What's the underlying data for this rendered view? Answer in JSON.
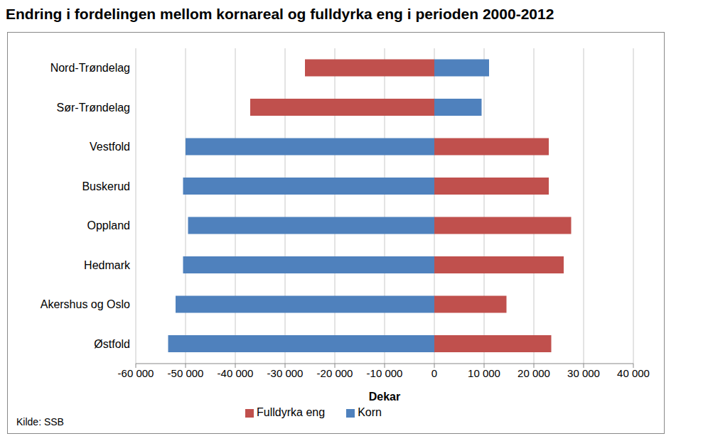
{
  "chart_data": {
    "type": "bar",
    "orientation": "horizontal",
    "stacked": true,
    "grid": true,
    "legend": "bottom",
    "title": "Endring i fordelingen mellom kornareal og fulldyrka eng i perioden 2000-2012",
    "x_label": "Dekar",
    "annotations": [
      "Kilde: SSB"
    ],
    "categories": [
      "Nord-Trøndelag",
      "Sør-Trøndelag",
      "Vestfold",
      "Buskerud",
      "Oppland",
      "Hedmark",
      "Akershus og Oslo",
      "Østfold"
    ],
    "series": [
      {
        "name": "Fulldyrka eng",
        "color": "#c0504d",
        "values": [
          -26000,
          -37000,
          23000,
          23000,
          27500,
          26000,
          14500,
          23500
        ]
      },
      {
        "name": "Korn",
        "color": "#4f81bd",
        "values": [
          11000,
          9500,
          -50000,
          -50500,
          -49500,
          -50500,
          -52000,
          -53500
        ]
      }
    ],
    "xlim": [
      -60000,
      40000
    ],
    "xticks": [
      {
        "value": -60000,
        "label": "-60 000"
      },
      {
        "value": -50000,
        "label": "-50 000"
      },
      {
        "value": -40000,
        "label": "-40 000"
      },
      {
        "value": -30000,
        "label": "-30 000"
      },
      {
        "value": -20000,
        "label": "-20 000"
      },
      {
        "value": -10000,
        "label": "-10 000"
      },
      {
        "value": 0,
        "label": "0"
      },
      {
        "value": 10000,
        "label": "10 000"
      },
      {
        "value": 20000,
        "label": "20 000"
      },
      {
        "value": 30000,
        "label": "30 000"
      },
      {
        "value": 40000,
        "label": "40 000"
      }
    ]
  }
}
